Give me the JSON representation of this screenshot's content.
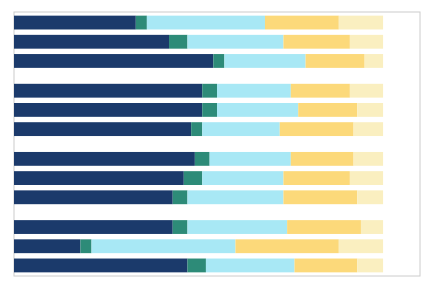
{
  "chart_data": {
    "type": "bar",
    "orientation": "horizontal",
    "stacked": true,
    "tick_labels": false,
    "categories": [
      null,
      null,
      null,
      null,
      null,
      null,
      null,
      null,
      null,
      null,
      null,
      null
    ],
    "xlim": [
      0,
      110
    ],
    "series": [
      {
        "color": "#1b3a6b",
        "values": [
          33,
          42,
          54,
          51,
          51,
          48,
          49,
          46,
          43,
          43,
          18,
          47
        ]
      },
      {
        "color": "#2d8b78",
        "values": [
          3,
          5,
          3,
          4,
          4,
          3,
          4,
          5,
          4,
          4,
          3,
          5
        ]
      },
      {
        "color": "#a8e8f5",
        "values": [
          32,
          26,
          22,
          20,
          22,
          21,
          22,
          22,
          26,
          27,
          39,
          24
        ]
      },
      {
        "color": "#fcd97a",
        "values": [
          20,
          18,
          16,
          16,
          16,
          20,
          17,
          18,
          20,
          20,
          28,
          17
        ]
      },
      {
        "color": "#faefc0",
        "values": [
          12,
          9,
          5,
          9,
          7,
          8,
          8,
          9,
          7,
          6,
          12,
          7
        ]
      }
    ]
  }
}
